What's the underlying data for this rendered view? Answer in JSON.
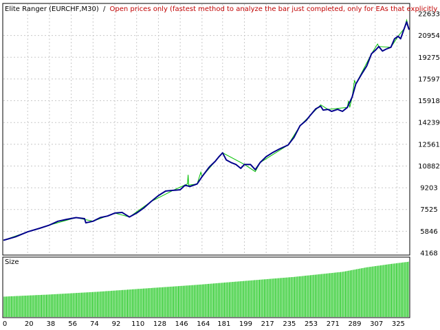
{
  "header": {
    "title": "Elite Ranger (EURCHF,M30)",
    "separator": "/",
    "mode": "Open prices only (fastest method to analyze the bar just completed, only for EAs that explicitly control bar oper"
  },
  "colors": {
    "background": "#ffffff",
    "frame": "#000000",
    "grid": "#c8c8c8",
    "balance_line": "#00008b",
    "equity_line": "#00c000",
    "size_bars": "#00c000",
    "mode_text": "#c00000",
    "text": "#000000"
  },
  "chart_data": [
    {
      "type": "line",
      "title": "",
      "y_ticks": [
        "22633",
        "20954",
        "19275",
        "17597",
        "15918",
        "14239",
        "12561",
        "10882",
        "9203",
        "7525",
        "5846",
        "4168"
      ],
      "ylim": [
        4168,
        22633
      ],
      "xlim": [
        0,
        335
      ],
      "grid": true,
      "series": [
        {
          "key": "balance",
          "points": [
            [
              0,
              5150
            ],
            [
              10,
              5420
            ],
            [
              20,
              5800
            ],
            [
              30,
              6080
            ],
            [
              38,
              6320
            ],
            [
              45,
              6620
            ],
            [
              52,
              6760
            ],
            [
              60,
              6900
            ],
            [
              67,
              6820
            ],
            [
              68,
              6500
            ],
            [
              74,
              6620
            ],
            [
              80,
              6900
            ],
            [
              86,
              7020
            ],
            [
              92,
              7250
            ],
            [
              98,
              7300
            ],
            [
              100,
              7180
            ],
            [
              104,
              6950
            ],
            [
              110,
              7250
            ],
            [
              116,
              7650
            ],
            [
              122,
              8150
            ],
            [
              128,
              8600
            ],
            [
              134,
              8950
            ],
            [
              140,
              9000
            ],
            [
              146,
              9050
            ],
            [
              150,
              9400
            ],
            [
              154,
              9300
            ],
            [
              160,
              9500
            ],
            [
              164,
              10050
            ],
            [
              170,
              10800
            ],
            [
              175,
              11250
            ],
            [
              178,
              11600
            ],
            [
              181,
              11900
            ],
            [
              184,
              11350
            ],
            [
              188,
              11150
            ],
            [
              192,
              11000
            ],
            [
              196,
              10700
            ],
            [
              199,
              11000
            ],
            [
              204,
              11000
            ],
            [
              208,
              10600
            ],
            [
              212,
              11150
            ],
            [
              217,
              11600
            ],
            [
              222,
              11900
            ],
            [
              228,
              12200
            ],
            [
              235,
              12500
            ],
            [
              240,
              13100
            ],
            [
              245,
              14000
            ],
            [
              250,
              14400
            ],
            [
              253,
              14750
            ],
            [
              258,
              15300
            ],
            [
              262,
              15500
            ],
            [
              264,
              15200
            ],
            [
              268,
              15250
            ],
            [
              271,
              15100
            ],
            [
              276,
              15250
            ],
            [
              280,
              15100
            ],
            [
              284,
              15400
            ],
            [
              288,
              16200
            ],
            [
              291,
              17200
            ],
            [
              296,
              18000
            ],
            [
              300,
              18600
            ],
            [
              304,
              19550
            ],
            [
              307,
              19800
            ],
            [
              310,
              20100
            ],
            [
              313,
              19750
            ],
            [
              316,
              19900
            ],
            [
              320,
              20050
            ],
            [
              323,
              20700
            ],
            [
              326,
              20900
            ],
            [
              328,
              20700
            ],
            [
              331,
              21500
            ],
            [
              333,
              22000
            ],
            [
              335,
              21400
            ]
          ]
        },
        {
          "key": "equity",
          "points": [
            [
              0,
              5150
            ],
            [
              20,
              5800
            ],
            [
              38,
              6320
            ],
            [
              60,
              6900
            ],
            [
              74,
              6620
            ],
            [
              92,
              7250
            ],
            [
              104,
              6950
            ],
            [
              122,
              8150
            ],
            [
              140,
              9000
            ],
            [
              152,
              9500
            ],
            [
              152.5,
              10200
            ],
            [
              153,
              9400
            ],
            [
              160,
              9500
            ],
            [
              163,
              10400
            ],
            [
              164,
              10050
            ],
            [
              181,
              11900
            ],
            [
              199,
              11000
            ],
            [
              208,
              10450
            ],
            [
              212,
              11150
            ],
            [
              235,
              12500
            ],
            [
              245,
              14000
            ],
            [
              253,
              14750
            ],
            [
              262,
              15600
            ],
            [
              268,
              15250
            ],
            [
              284,
              15400
            ],
            [
              285,
              15900
            ],
            [
              286,
              15400
            ],
            [
              288,
              16200
            ],
            [
              290,
              17500
            ],
            [
              291,
              17200
            ],
            [
              304,
              19550
            ],
            [
              309,
              20300
            ],
            [
              310,
              20100
            ],
            [
              320,
              20050
            ],
            [
              326,
              20900
            ],
            [
              331,
              21500
            ],
            [
              333,
              22150
            ],
            [
              335,
              21400
            ]
          ]
        }
      ]
    },
    {
      "type": "bar",
      "title": "Size",
      "x_ticks": [
        "0",
        "20",
        "38",
        "56",
        "74",
        "92",
        "110",
        "128",
        "146",
        "164",
        "181",
        "199",
        "217",
        "235",
        "253",
        "271",
        "289",
        "307",
        "325"
      ],
      "xlim": [
        0,
        335
      ],
      "ylim": [
        0,
        1
      ],
      "bar_count": 335,
      "relative_height_profile": [
        [
          0,
          0.36
        ],
        [
          40,
          0.4
        ],
        [
          80,
          0.45
        ],
        [
          120,
          0.51
        ],
        [
          160,
          0.57
        ],
        [
          200,
          0.64
        ],
        [
          240,
          0.71
        ],
        [
          280,
          0.8
        ],
        [
          300,
          0.88
        ],
        [
          320,
          0.94
        ],
        [
          335,
          0.98
        ]
      ]
    }
  ]
}
